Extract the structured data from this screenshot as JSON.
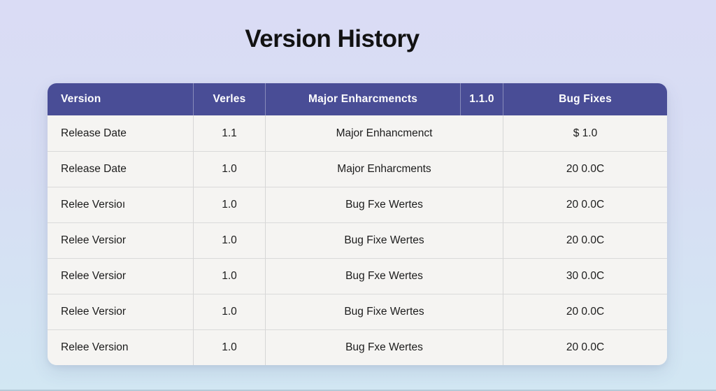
{
  "page": {
    "title": "Version History"
  },
  "colors": {
    "header_bg": "#494d96",
    "header_text": "#ffffff",
    "row_bg": "#f5f4f2",
    "body_text": "#1c1c1c",
    "bg_top": "#dadcf5",
    "bg_bottom": "#d2e7f3"
  },
  "table": {
    "headers": [
      "Version",
      "Verles",
      "Major Enharcmencts",
      "1.1.0",
      "Bug Fixes"
    ],
    "rows": [
      [
        "Release Date",
        "1.1",
        "Major Enhancmenct",
        "$ 1.0"
      ],
      [
        "Release Date",
        "1.0",
        "Major Enharcments",
        "20 0.0C"
      ],
      [
        "Relee Versioı",
        "1.0",
        "Bug Fxe Wertes",
        "20 0.0C"
      ],
      [
        "Relee Versior",
        "1.0",
        "Bug Fixe Wertes",
        "20 0.0C"
      ],
      [
        "Relee Versior",
        "1.0",
        "Bug Fxe Wertes",
        "30 0.0C"
      ],
      [
        "Relee Versior",
        "1.0",
        "Bug Fixe Wertes",
        "20 0.0C"
      ],
      [
        "Relee Version",
        "1.0",
        "Bug Fxe Wertes",
        "20 0.0C"
      ]
    ]
  },
  "chart_data": {
    "type": "table",
    "title": "Version History",
    "columns": [
      "Version",
      "Verles",
      "Major Enharcmencts",
      "1.1.0",
      "Bug Fixes"
    ],
    "rows": [
      [
        "Release Date",
        "1.1",
        "Major Enhancmenct",
        "$ 1.0"
      ],
      [
        "Release Date",
        "1.0",
        "Major Enharcments",
        "20 0.0C"
      ],
      [
        "Relee Versioı",
        "1.0",
        "Bug Fxe Wertes",
        "20 0.0C"
      ],
      [
        "Relee Versior",
        "1.0",
        "Bug Fixe Wertes",
        "20 0.0C"
      ],
      [
        "Relee Versior",
        "1.0",
        "Bug Fxe Wertes",
        "30 0.0C"
      ],
      [
        "Relee Versior",
        "1.0",
        "Bug Fixe Wertes",
        "20 0.0C"
      ],
      [
        "Relee Version",
        "1.0",
        "Bug Fxe Wertes",
        "20 0.0C"
      ]
    ],
    "layout_notes": "Header has 5 columns; in body rows the 3rd cell spans header columns 3 and 4",
    "header_style": "dark indigo background, white bold text",
    "legend_position": "none",
    "grid": true
  }
}
